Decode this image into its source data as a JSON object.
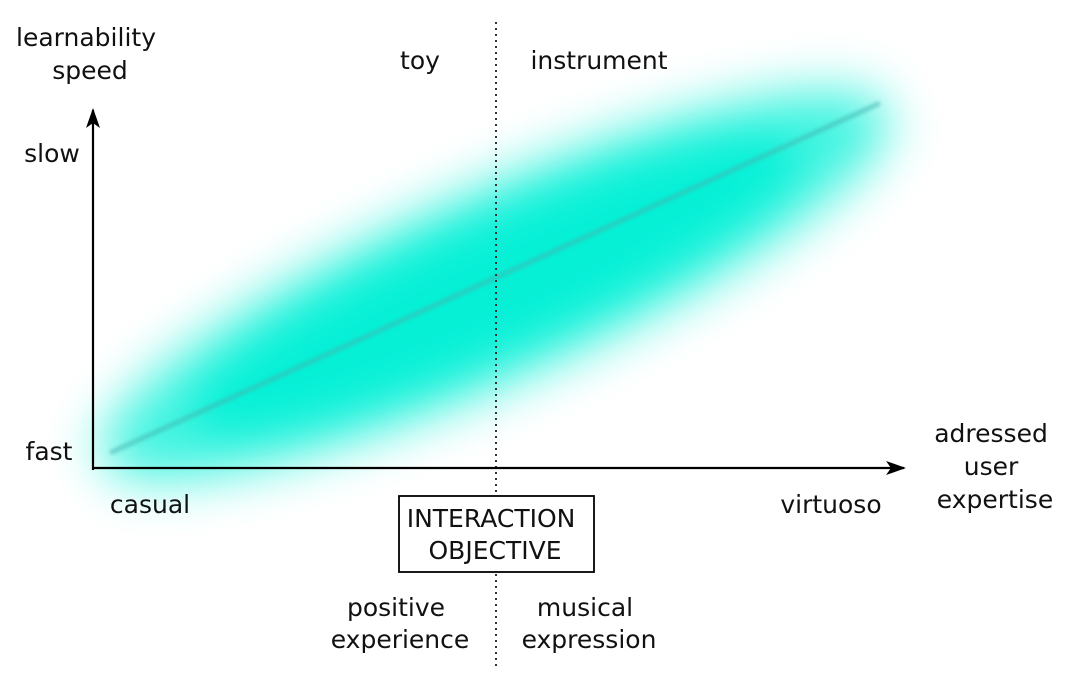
{
  "axes": {
    "y_label": [
      "learnability",
      "speed"
    ],
    "y_top_label": "slow",
    "y_bottom_label": "fast",
    "x_label": [
      "adressed",
      "user",
      "expertise"
    ],
    "x_left_label": "casual",
    "x_right_label": "virtuoso"
  },
  "regions": {
    "top_left": "toy",
    "top_right": "instrument",
    "bottom_left": [
      "positive",
      "experience"
    ],
    "bottom_right": [
      "musical",
      "expression"
    ]
  },
  "objective_box": [
    "INTERACTION",
    "OBJECTIVE"
  ],
  "colors": {
    "band": "#00f0d6",
    "trend_line": "#3fb5b0",
    "axis": "#000000",
    "text": "#111111"
  }
}
